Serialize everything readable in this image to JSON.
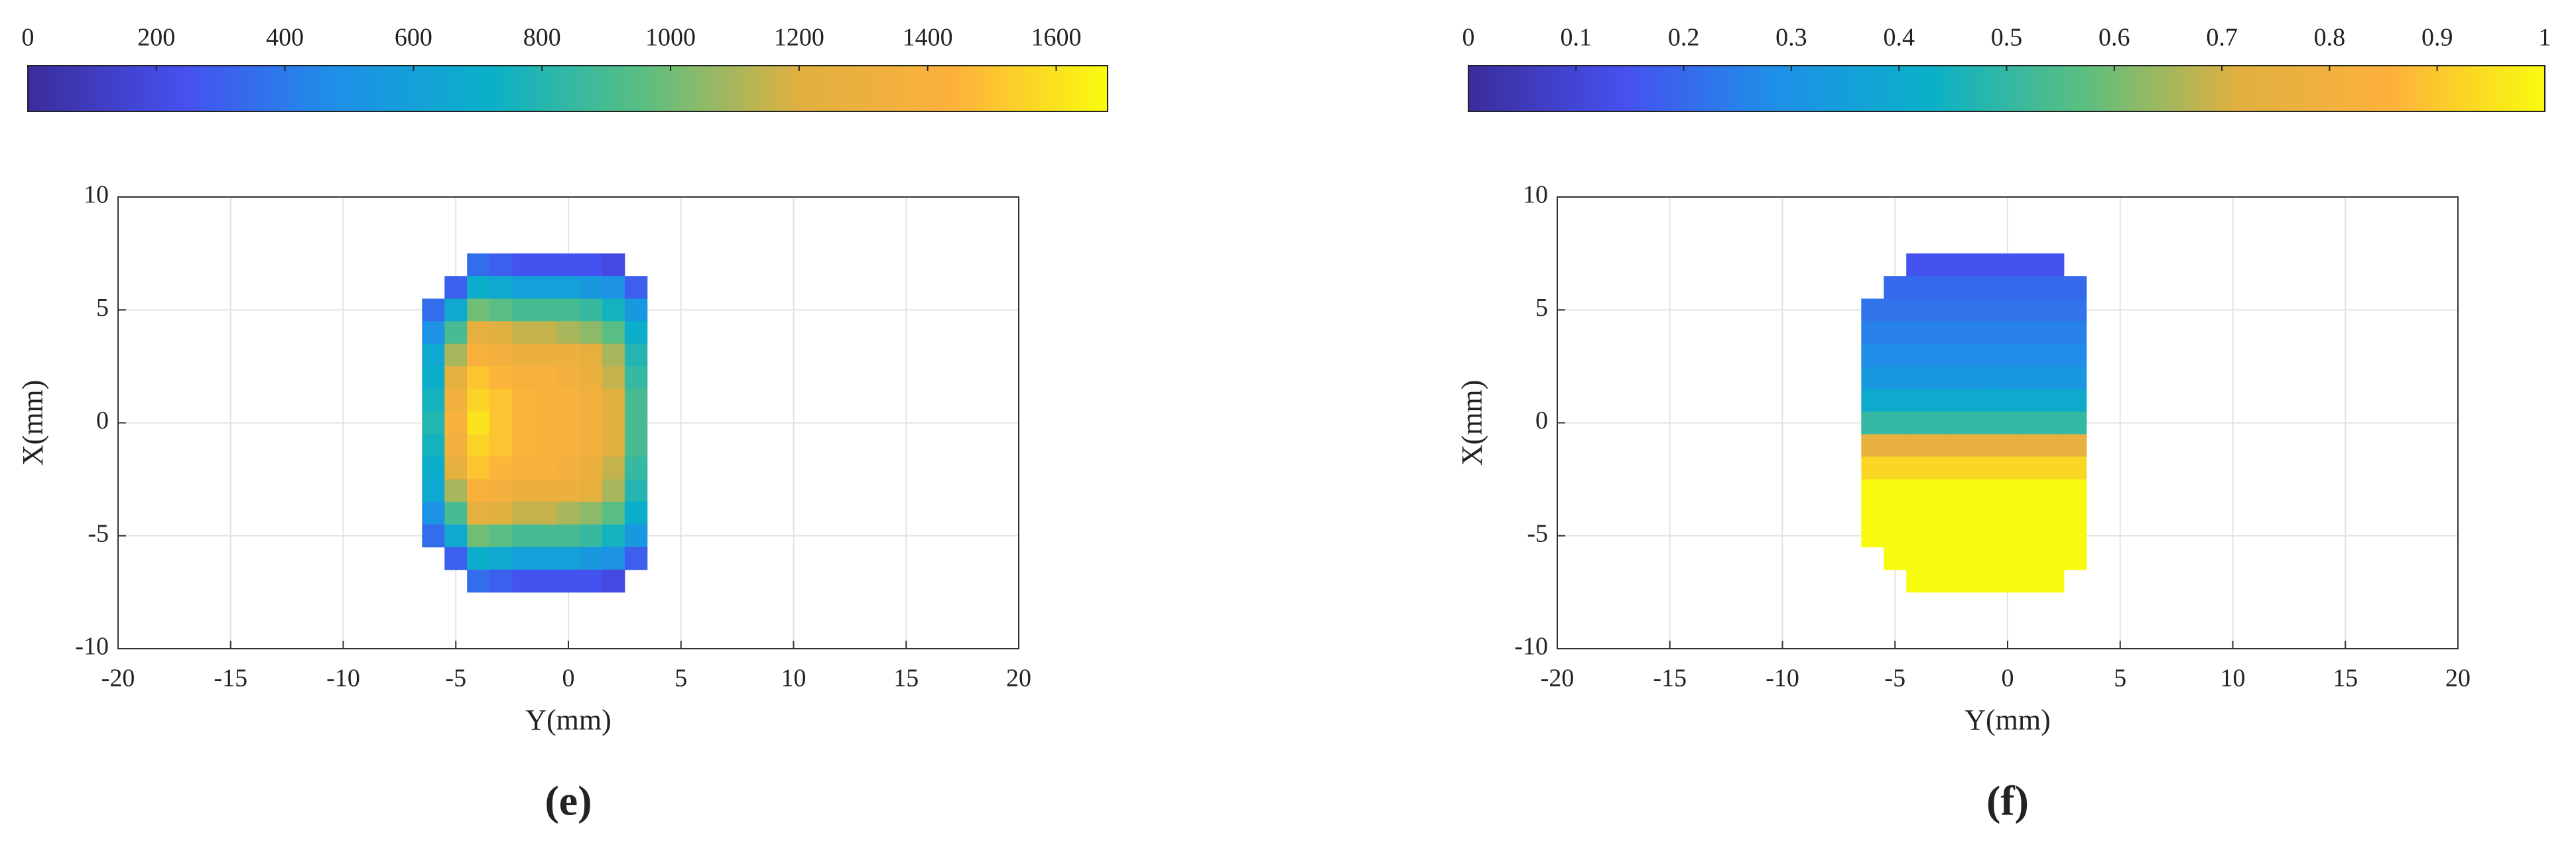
{
  "chart_data": [
    {
      "type": "heatmap",
      "caption": "(e)",
      "xlabel": "Y(mm)",
      "ylabel": "X(mm)",
      "xlim": [
        -20,
        20
      ],
      "xticks": [
        -20,
        -15,
        -10,
        -5,
        0,
        5,
        10,
        15,
        20
      ],
      "ylim": [
        -10,
        10
      ],
      "yticks": [
        -10,
        -5,
        0,
        5,
        10
      ],
      "grid": true,
      "x": [
        -6,
        -5,
        -4,
        -3,
        -2,
        -1,
        0,
        1,
        2,
        3
      ],
      "y": [
        7,
        6,
        5,
        4,
        3,
        2,
        1,
        0,
        -1,
        -2,
        -3,
        -4,
        -5,
        -6,
        -7
      ],
      "z": [
        [
          null,
          null,
          350,
          300,
          250,
          250,
          250,
          250,
          200,
          null
        ],
        [
          null,
          300,
          700,
          650,
          600,
          600,
          600,
          550,
          500,
          300
        ],
        [
          350,
          650,
          1000,
          950,
          900,
          900,
          900,
          850,
          750,
          550
        ],
        [
          500,
          900,
          1250,
          1200,
          1150,
          1150,
          1100,
          1050,
          950,
          700
        ],
        [
          650,
          1100,
          1400,
          1350,
          1300,
          1300,
          1300,
          1250,
          1100,
          800
        ],
        [
          700,
          1250,
          1500,
          1450,
          1400,
          1400,
          1350,
          1300,
          1150,
          850
        ],
        [
          750,
          1350,
          1550,
          1500,
          1450,
          1400,
          1400,
          1350,
          1200,
          900
        ],
        [
          800,
          1400,
          1600,
          1500,
          1450,
          1400,
          1400,
          1350,
          1200,
          900
        ],
        [
          750,
          1350,
          1550,
          1500,
          1450,
          1400,
          1400,
          1350,
          1200,
          900
        ],
        [
          700,
          1250,
          1500,
          1450,
          1400,
          1400,
          1350,
          1300,
          1150,
          850
        ],
        [
          650,
          1100,
          1400,
          1350,
          1300,
          1300,
          1300,
          1250,
          1100,
          800
        ],
        [
          500,
          900,
          1250,
          1200,
          1150,
          1150,
          1100,
          1050,
          950,
          700
        ],
        [
          350,
          650,
          1000,
          950,
          900,
          900,
          900,
          850,
          750,
          550
        ],
        [
          null,
          300,
          700,
          650,
          600,
          600,
          600,
          550,
          500,
          300
        ],
        [
          null,
          null,
          350,
          300,
          250,
          250,
          250,
          250,
          200,
          null
        ]
      ],
      "colorbar": {
        "clim": [
          0,
          1680
        ],
        "ticks": [
          0,
          200,
          400,
          600,
          800,
          1000,
          1200,
          1400,
          1600
        ]
      },
      "colormap": [
        "#3a2d9a",
        "#4650ef",
        "#1e90e8",
        "#0ab0c8",
        "#5bbf80",
        "#e0b040",
        "#fdb13c",
        "#f9fb0e"
      ]
    },
    {
      "type": "heatmap",
      "caption": "(f)",
      "xlabel": "Y(mm)",
      "ylabel": "X(mm)",
      "xlim": [
        -20,
        20
      ],
      "xticks": [
        -20,
        -15,
        -10,
        -5,
        0,
        5,
        10,
        15,
        20
      ],
      "ylim": [
        -10,
        10
      ],
      "yticks": [
        -10,
        -5,
        0,
        5,
        10
      ],
      "grid": true,
      "x": [
        -6,
        -5,
        -4,
        -3,
        -2,
        -1,
        0,
        1,
        2,
        3
      ],
      "y": [
        7,
        6,
        5,
        4,
        3,
        2,
        1,
        0,
        -1,
        -2,
        -3,
        -4,
        -5,
        -6,
        -7
      ],
      "z": [
        [
          null,
          null,
          0.15,
          0.15,
          0.15,
          0.15,
          0.15,
          0.15,
          0.15,
          null
        ],
        [
          null,
          0.2,
          0.2,
          0.2,
          0.2,
          0.2,
          0.2,
          0.2,
          0.2,
          0.2
        ],
        [
          0.22,
          0.22,
          0.22,
          0.22,
          0.22,
          0.22,
          0.22,
          0.22,
          0.22,
          0.22
        ],
        [
          0.25,
          0.25,
          0.25,
          0.25,
          0.25,
          0.25,
          0.25,
          0.25,
          0.25,
          0.25
        ],
        [
          0.28,
          0.28,
          0.28,
          0.28,
          0.28,
          0.28,
          0.28,
          0.28,
          0.28,
          0.28
        ],
        [
          0.32,
          0.32,
          0.32,
          0.32,
          0.32,
          0.32,
          0.32,
          0.32,
          0.32,
          0.32
        ],
        [
          0.4,
          0.4,
          0.4,
          0.4,
          0.4,
          0.4,
          0.4,
          0.4,
          0.4,
          0.4
        ],
        [
          0.5,
          0.5,
          0.5,
          0.5,
          0.5,
          0.5,
          0.5,
          0.5,
          0.5,
          0.5
        ],
        [
          0.75,
          0.75,
          0.75,
          0.75,
          0.75,
          0.75,
          0.75,
          0.75,
          0.75,
          0.75
        ],
        [
          0.93,
          0.93,
          0.93,
          0.93,
          0.93,
          0.93,
          0.93,
          0.93,
          0.93,
          0.93
        ],
        [
          1,
          1,
          1,
          1,
          1,
          1,
          1,
          1,
          1,
          1
        ],
        [
          1,
          1,
          1,
          1,
          1,
          1,
          1,
          1,
          1,
          1
        ],
        [
          1,
          1,
          1,
          1,
          1,
          1,
          1,
          1,
          1,
          1
        ],
        [
          null,
          1,
          1,
          1,
          1,
          1,
          1,
          1,
          1,
          1
        ],
        [
          null,
          null,
          1,
          1,
          1,
          1,
          1,
          1,
          1,
          null
        ]
      ],
      "colorbar": {
        "clim": [
          0,
          1
        ],
        "ticks": [
          0,
          0.1,
          0.2,
          0.3,
          0.4,
          0.5,
          0.6,
          0.7,
          0.8,
          0.9,
          1
        ]
      },
      "colormap": [
        "#3a2d9a",
        "#4650ef",
        "#1e90e8",
        "#0ab0c8",
        "#5bbf80",
        "#e0b040",
        "#fdb13c",
        "#f9fb0e"
      ]
    }
  ]
}
